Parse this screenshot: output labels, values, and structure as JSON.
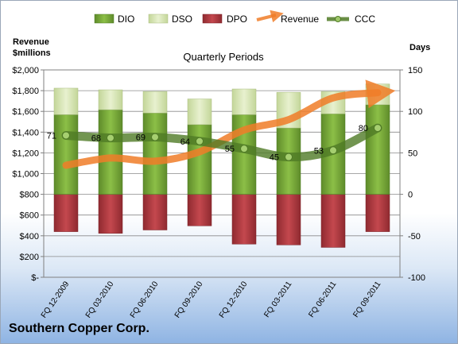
{
  "chart_data": {
    "type": "bar",
    "title": "Quarterly Periods",
    "company": "Southern Copper Corp.",
    "y_left_label": [
      "Revenue",
      "$millions"
    ],
    "y_right_label": "Days",
    "y_left_ticks": [
      "$-",
      "$200",
      "$400",
      "$600",
      "$800",
      "$1,000",
      "$1,200",
      "$1,400",
      "$1,600",
      "$1,800",
      "$2,000"
    ],
    "y_right_ticks": [
      "-100",
      "-50",
      "0",
      "50",
      "100",
      "150"
    ],
    "y_right_lim": [
      -100,
      150
    ],
    "categories": [
      "FQ 12-2009",
      "FQ 03-2010",
      "FQ 06-2010",
      "FQ 09-2010",
      "FQ 12-2010",
      "FQ 03-2011",
      "FQ 06-2011",
      "FQ 09-2011"
    ],
    "legend": [
      "DIO",
      "DSO",
      "DPO",
      "Revenue",
      "CCC"
    ],
    "legend_position": "top",
    "grid": true,
    "series": [
      {
        "name": "DIO",
        "axis": "right",
        "values": [
          96,
          102,
          98,
          84,
          96,
          80,
          97,
          108
        ]
      },
      {
        "name": "DSO",
        "axis": "right",
        "values": [
          32,
          24,
          26,
          31,
          31,
          43,
          27,
          25
        ]
      },
      {
        "name": "DPO",
        "axis": "right",
        "values": [
          -45,
          -47,
          -43,
          -38,
          -60,
          -61,
          -64,
          -45
        ]
      },
      {
        "name": "Revenue",
        "axis": "left",
        "values": [
          1080,
          1150,
          1120,
          1210,
          1420,
          1520,
          1730,
          1780
        ]
      },
      {
        "name": "CCC",
        "axis": "right",
        "values": [
          71,
          68,
          69,
          64,
          55,
          45,
          53,
          80
        ],
        "labels": [
          "71",
          "68",
          "69",
          "64",
          "55",
          "45",
          "53",
          "80"
        ]
      }
    ],
    "colors": {
      "DIO": "#7dab3e",
      "DSO": "#d9e7b4",
      "DPO": "#b53a40",
      "Revenue": "#f07c28",
      "CCC": "#4f7a25"
    }
  }
}
